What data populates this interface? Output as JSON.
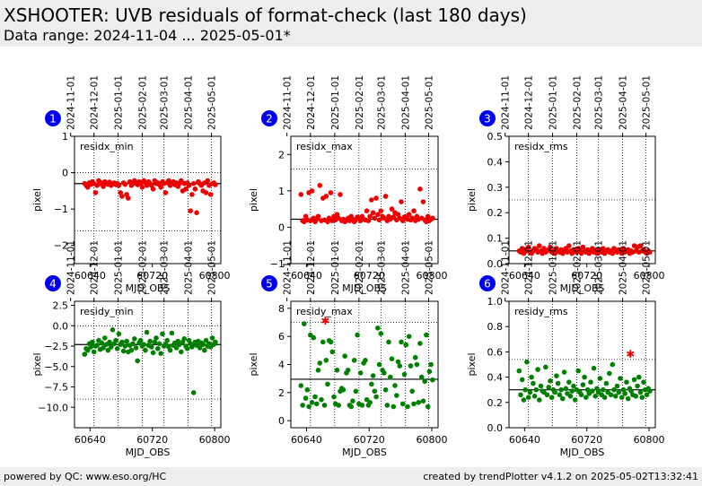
{
  "header": {
    "title": "XSHOOTER: UVB residuals of format-check (last 180 days)",
    "subtitle": "Data range: 2024-11-04 ... 2025-05-01*"
  },
  "footer": {
    "left": "powered by QC: www.eso.org/HC",
    "right": "created by trendPlotter v4.1.2 on 2025-05-02T13:32:41"
  },
  "colors": {
    "red": "#ee0000",
    "green": "#008000",
    "badge": "#0000ee",
    "header_bg": "#eeeeee"
  },
  "date_ticks": {
    "labels": [
      "2024-11-01",
      "2024-12-01",
      "2025-01-01",
      "2025-02-01",
      "2025-03-01",
      "2025-04-01",
      "2025-05-01"
    ],
    "mjd": [
      60615,
      60645,
      60676,
      60707,
      60735,
      60766,
      60796
    ]
  },
  "chart_data": [
    {
      "type": "scatter",
      "panel": "1",
      "label": "residx_min",
      "xlabel": "MJD_OBS",
      "ylabel": "pixel",
      "xlim": [
        60620,
        60808
      ],
      "xticks": [
        60640,
        60720,
        60800
      ],
      "ylim": [
        -2.5,
        1
      ],
      "yticks": [
        -2,
        -1,
        0,
        1
      ],
      "yticklabels": [
        "−2",
        "−1",
        "0",
        "1"
      ],
      "refline": -0.3,
      "hlines_dotted": [
        0,
        -1.6
      ],
      "color": "red",
      "x": [
        60633,
        60635,
        60637,
        60639,
        60641,
        60643,
        60645,
        60647,
        60649,
        60651,
        60653,
        60655,
        60657,
        60659,
        60661,
        60663,
        60665,
        60667,
        60669,
        60671,
        60673,
        60675,
        60677,
        60679,
        60681,
        60683,
        60685,
        60687,
        60689,
        60691,
        60693,
        60695,
        60697,
        60699,
        60701,
        60703,
        60705,
        60707,
        60709,
        60711,
        60713,
        60715,
        60717,
        60719,
        60721,
        60723,
        60725,
        60727,
        60729,
        60731,
        60733,
        60735,
        60737,
        60739,
        60741,
        60743,
        60745,
        60747,
        60749,
        60751,
        60753,
        60755,
        60757,
        60759,
        60761,
        60763,
        60765,
        60767,
        60769,
        60771,
        60773,
        60775,
        60777,
        60779,
        60781,
        60783,
        60785,
        60787,
        60789,
        60791,
        60793,
        60795,
        60797,
        60799,
        60801
      ],
      "y": [
        -0.3,
        -0.35,
        -0.4,
        -0.28,
        -0.32,
        -0.25,
        -0.3,
        -0.55,
        -0.35,
        -0.22,
        -0.3,
        -0.28,
        -0.38,
        -0.25,
        -0.3,
        -0.32,
        -0.26,
        -0.35,
        -0.3,
        -0.28,
        -0.33,
        -0.3,
        -0.35,
        -0.55,
        -0.65,
        -0.28,
        -0.32,
        -0.6,
        -0.7,
        -0.25,
        -0.35,
        -0.3,
        -0.22,
        -0.28,
        -0.33,
        -0.25,
        -0.3,
        -0.4,
        -0.22,
        -0.28,
        -0.35,
        -0.25,
        -0.3,
        -0.35,
        -0.45,
        -0.22,
        -0.3,
        -0.28,
        -0.33,
        -0.4,
        -0.25,
        -0.3,
        -0.55,
        -0.28,
        -0.22,
        -0.35,
        -0.3,
        -0.25,
        -0.33,
        -0.28,
        -0.38,
        -0.3,
        -0.22,
        -0.5,
        -0.3,
        -0.45,
        -0.28,
        -0.35,
        -1.05,
        -0.6,
        -0.3,
        -0.45,
        -1.1,
        -0.25,
        -0.3,
        -0.35,
        -0.5,
        -0.28,
        -0.55,
        -0.22,
        -0.35,
        -0.6,
        -0.3,
        -0.28,
        -0.33
      ]
    },
    {
      "type": "scatter",
      "panel": "2",
      "label": "residx_max",
      "xlabel": "MJD_OBS",
      "ylabel": "pixel",
      "xlim": [
        60620,
        60808
      ],
      "xticks": [
        60640,
        60720,
        60800
      ],
      "ylim": [
        -1,
        2.5
      ],
      "yticks": [
        -1,
        0,
        1,
        2
      ],
      "yticklabels": [
        "−1",
        "0",
        "1",
        "2"
      ],
      "refline": 0.22,
      "hlines_dotted": [
        1.6
      ],
      "color": "red",
      "x": [
        60633,
        60635,
        60637,
        60639,
        60641,
        60643,
        60645,
        60647,
        60649,
        60651,
        60653,
        60655,
        60657,
        60659,
        60661,
        60663,
        60665,
        60667,
        60669,
        60671,
        60673,
        60675,
        60677,
        60679,
        60681,
        60683,
        60685,
        60687,
        60689,
        60691,
        60693,
        60695,
        60697,
        60699,
        60701,
        60703,
        60705,
        60707,
        60709,
        60711,
        60713,
        60715,
        60717,
        60719,
        60721,
        60723,
        60725,
        60727,
        60729,
        60731,
        60733,
        60735,
        60737,
        60739,
        60741,
        60743,
        60745,
        60747,
        60749,
        60751,
        60753,
        60755,
        60757,
        60759,
        60761,
        60763,
        60765,
        60767,
        60769,
        60771,
        60773,
        60775,
        60777,
        60779,
        60781,
        60783,
        60785,
        60787,
        60789,
        60791,
        60793,
        60795,
        60797,
        60799,
        60801
      ],
      "y": [
        0.9,
        0.18,
        0.15,
        0.3,
        0.2,
        0.95,
        0.18,
        1.0,
        0.25,
        0.15,
        0.22,
        0.3,
        1.15,
        0.18,
        0.8,
        0.2,
        0.85,
        0.15,
        0.25,
        0.95,
        0.18,
        0.3,
        0.2,
        0.35,
        0.25,
        0.9,
        0.18,
        0.22,
        0.15,
        0.2,
        0.25,
        0.18,
        0.3,
        0.22,
        0.15,
        0.2,
        0.28,
        0.25,
        0.18,
        0.3,
        0.22,
        0.2,
        0.45,
        0.18,
        0.3,
        0.75,
        0.4,
        0.25,
        0.8,
        0.35,
        0.2,
        0.45,
        0.3,
        0.25,
        0.85,
        0.18,
        0.3,
        0.22,
        0.5,
        0.28,
        0.4,
        0.2,
        0.35,
        0.25,
        0.7,
        0.18,
        0.28,
        0.3,
        0.22,
        0.35,
        0.2,
        0.25,
        0.45,
        0.18,
        0.3,
        0.22,
        1.05,
        0.25,
        0.7,
        0.2,
        0.15,
        0.3,
        0.18,
        0.22,
        0.25
      ]
    },
    {
      "type": "scatter",
      "panel": "3",
      "label": "residx_rms",
      "xlabel": "MJD_OBS",
      "ylabel": "pixel",
      "xlim": [
        60620,
        60808
      ],
      "xticks": [
        60640,
        60720,
        60800
      ],
      "ylim": [
        0,
        0.5
      ],
      "yticks": [
        0,
        0.1,
        0.2,
        0.3,
        0.4,
        0.5
      ],
      "yticklabels": [
        "0.0",
        "0.1",
        "0.2",
        "0.3",
        "0.4",
        "0.5"
      ],
      "refline": 0.05,
      "hlines_dotted": [
        0.25
      ],
      "color": "red",
      "x": [
        60633,
        60635,
        60637,
        60639,
        60641,
        60643,
        60645,
        60647,
        60649,
        60651,
        60653,
        60655,
        60657,
        60659,
        60661,
        60663,
        60665,
        60667,
        60669,
        60671,
        60673,
        60675,
        60677,
        60679,
        60681,
        60683,
        60685,
        60687,
        60689,
        60691,
        60693,
        60695,
        60697,
        60699,
        60701,
        60703,
        60705,
        60707,
        60709,
        60711,
        60713,
        60715,
        60717,
        60719,
        60721,
        60723,
        60725,
        60727,
        60729,
        60731,
        60733,
        60735,
        60737,
        60739,
        60741,
        60743,
        60745,
        60747,
        60749,
        60751,
        60753,
        60755,
        60757,
        60759,
        60761,
        60763,
        60765,
        60767,
        60769,
        60771,
        60773,
        60775,
        60777,
        60779,
        60781,
        60783,
        60785,
        60787,
        60789,
        60791,
        60793,
        60795,
        60797,
        60799,
        60801
      ],
      "y": [
        0.05,
        0.045,
        0.06,
        0.04,
        0.055,
        0.05,
        0.065,
        0.045,
        0.04,
        0.05,
        0.06,
        0.055,
        0.045,
        0.07,
        0.05,
        0.04,
        0.06,
        0.045,
        0.05,
        0.055,
        0.065,
        0.045,
        0.05,
        0.04,
        0.06,
        0.05,
        0.045,
        0.055,
        0.04,
        0.05,
        0.06,
        0.045,
        0.07,
        0.05,
        0.04,
        0.055,
        0.05,
        0.045,
        0.06,
        0.05,
        0.04,
        0.065,
        0.05,
        0.045,
        0.055,
        0.04,
        0.05,
        0.06,
        0.045,
        0.05,
        0.04,
        0.055,
        0.05,
        0.045,
        0.06,
        0.04,
        0.05,
        0.055,
        0.045,
        0.05,
        0.04,
        0.06,
        0.05,
        0.045,
        0.055,
        0.05,
        0.04,
        0.06,
        0.045,
        0.05,
        0.055,
        0.04,
        0.05,
        0.045,
        0.07,
        0.05,
        0.065,
        0.045,
        0.07,
        0.05,
        0.055,
        0.045,
        0.04,
        0.05,
        0.045
      ]
    },
    {
      "type": "scatter",
      "panel": "4",
      "label": "residy_min",
      "xlabel": "MJD_OBS",
      "ylabel": "pixel",
      "xlim": [
        60620,
        60808
      ],
      "xticks": [
        60640,
        60720,
        60800
      ],
      "ylim": [
        -12.5,
        3
      ],
      "yticks": [
        2.5,
        0,
        -2.5,
        -5,
        -7.5,
        -10
      ],
      "yticklabels": [
        "2.5",
        "0.0",
        "−2.5",
        "−5.0",
        "−7.5",
        "−10.0"
      ],
      "refline": -2.3,
      "hlines_dotted": [
        0,
        -9
      ],
      "color": "green",
      "x": [
        60633,
        60635,
        60637,
        60639,
        60641,
        60643,
        60645,
        60647,
        60649,
        60651,
        60653,
        60655,
        60657,
        60659,
        60661,
        60663,
        60665,
        60667,
        60669,
        60671,
        60673,
        60675,
        60677,
        60679,
        60681,
        60683,
        60685,
        60687,
        60689,
        60691,
        60693,
        60695,
        60697,
        60699,
        60701,
        60703,
        60705,
        60707,
        60709,
        60711,
        60713,
        60715,
        60717,
        60719,
        60721,
        60723,
        60725,
        60727,
        60729,
        60731,
        60733,
        60735,
        60737,
        60739,
        60741,
        60743,
        60745,
        60747,
        60749,
        60751,
        60753,
        60755,
        60757,
        60759,
        60761,
        60763,
        60765,
        60767,
        60769,
        60771,
        60773,
        60775,
        60777,
        60779,
        60781,
        60783,
        60785,
        60787,
        60789,
        60791,
        60793,
        60795,
        60797,
        60799,
        60801
      ],
      "y": [
        -3.5,
        -2.8,
        -3.0,
        -2.2,
        -2.6,
        -2.0,
        -3.2,
        -2.5,
        -2.4,
        -1.8,
        -2.9,
        -2.1,
        -2.7,
        -1.5,
        -2.3,
        -3.0,
        -2.0,
        -2.6,
        -0.5,
        -2.2,
        -1.8,
        -2.8,
        -1.0,
        -2.3,
        -2.0,
        -3.1,
        -2.5,
        -1.9,
        -3.2,
        -2.4,
        -3.0,
        -2.2,
        -1.6,
        -2.7,
        -4.3,
        -2.1,
        -1.8,
        -2.5,
        -2.3,
        -3.0,
        -0.8,
        -2.4,
        -1.9,
        -2.6,
        -3.3,
        -2.0,
        -1.5,
        -2.8,
        -2.2,
        -3.4,
        -1.0,
        -2.5,
        -2.3,
        -1.8,
        -2.6,
        -3.0,
        -0.9,
        -2.4,
        -2.1,
        -2.7,
        -1.9,
        -2.3,
        -3.2,
        -2.0,
        -1.6,
        -2.5,
        -2.8,
        -1.8,
        -2.2,
        -2.6,
        -8.2,
        -2.0,
        -2.4,
        -1.9,
        -2.7,
        -2.1,
        -2.3,
        -3.0,
        -1.8,
        -2.5,
        -2.2,
        -2.6,
        -1.5,
        -2.3,
        -2.0
      ]
    },
    {
      "type": "scatter",
      "panel": "5",
      "label": "residy_max",
      "xlabel": "MJD_OBS",
      "ylabel": "pixel",
      "xlim": [
        60620,
        60808
      ],
      "xticks": [
        60640,
        60720,
        60800
      ],
      "ylim": [
        -0.5,
        8.5
      ],
      "yticks": [
        0,
        2,
        4,
        6,
        8
      ],
      "yticklabels": [
        "0",
        "2",
        "4",
        "6",
        "8"
      ],
      "refline": 2.95,
      "hlines_dotted": [
        7.0
      ],
      "color": "green",
      "outlier": {
        "x": 60664,
        "y": 7.1
      },
      "x": [
        60633,
        60635,
        60637,
        60639,
        60641,
        60643,
        60645,
        60647,
        60649,
        60651,
        60653,
        60655,
        60657,
        60659,
        60661,
        60663,
        60665,
        60667,
        60669,
        60671,
        60673,
        60675,
        60677,
        60679,
        60681,
        60683,
        60685,
        60687,
        60689,
        60691,
        60693,
        60695,
        60697,
        60699,
        60701,
        60703,
        60705,
        60707,
        60709,
        60711,
        60713,
        60715,
        60717,
        60719,
        60721,
        60723,
        60725,
        60727,
        60729,
        60731,
        60733,
        60735,
        60737,
        60739,
        60741,
        60743,
        60745,
        60747,
        60749,
        60751,
        60753,
        60755,
        60757,
        60759,
        60761,
        60763,
        60765,
        60767,
        60769,
        60771,
        60773,
        60775,
        60777,
        60779,
        60781,
        60783,
        60785,
        60787,
        60789,
        60791,
        60793,
        60795,
        60797,
        60799,
        60801
      ],
      "y": [
        2.5,
        1.1,
        6.9,
        1.6,
        2.2,
        1.0,
        6.1,
        1.3,
        5.9,
        1.7,
        1.2,
        3.6,
        4.1,
        1.5,
        5.6,
        1.1,
        4.3,
        2.6,
        5.7,
        5.6,
        4.9,
        1.7,
        1.2,
        3.6,
        1.1,
        2.1,
        2.3,
        2.2,
        4.6,
        3.4,
        3.6,
        1.1,
        1.0,
        1.4,
        4.3,
        2.1,
        6.1,
        1.2,
        3.4,
        1.1,
        4.1,
        4.3,
        1.5,
        1.1,
        1.3,
        2.6,
        3.2,
        2.1,
        1.7,
        6.6,
        4.0,
        6.2,
        3.6,
        3.4,
        2.2,
        1.1,
        5.6,
        3.1,
        4.4,
        1.0,
        2.5,
        1.8,
        4.2,
        3.9,
        5.6,
        1.2,
        3.3,
        5.4,
        1.0,
        6.0,
        3.9,
        2.1,
        1.2,
        4.5,
        4.0,
        1.3,
        5.5,
        3.1,
        1.4,
        2.8,
        6.1,
        1.0,
        3.5,
        4.0,
        2.9
      ]
    },
    {
      "type": "scatter",
      "panel": "6",
      "label": "residy_rms",
      "xlabel": "MJD_OBS",
      "ylabel": "pixel",
      "xlim": [
        60620,
        60808
      ],
      "xticks": [
        60640,
        60720,
        60800
      ],
      "ylim": [
        0,
        1
      ],
      "yticks": [
        0,
        0.2,
        0.4,
        0.6,
        0.8,
        1.0
      ],
      "yticklabels": [
        "0.0",
        "0.2",
        "0.4",
        "0.6",
        "0.8",
        "1.0"
      ],
      "refline": 0.3,
      "hlines_dotted": [
        0.54
      ],
      "color": "green",
      "outlier": {
        "x": 60776,
        "y": 0.58
      },
      "x": [
        60633,
        60635,
        60637,
        60639,
        60641,
        60643,
        60645,
        60647,
        60649,
        60651,
        60653,
        60655,
        60657,
        60659,
        60661,
        60663,
        60665,
        60667,
        60669,
        60671,
        60673,
        60675,
        60677,
        60679,
        60681,
        60683,
        60685,
        60687,
        60689,
        60691,
        60693,
        60695,
        60697,
        60699,
        60701,
        60703,
        60705,
        60707,
        60709,
        60711,
        60713,
        60715,
        60717,
        60719,
        60721,
        60723,
        60725,
        60727,
        60729,
        60731,
        60733,
        60735,
        60737,
        60739,
        60741,
        60743,
        60745,
        60747,
        60749,
        60751,
        60753,
        60755,
        60757,
        60759,
        60761,
        60763,
        60765,
        60767,
        60769,
        60771,
        60773,
        60775,
        60777,
        60779,
        60781,
        60783,
        60785,
        60787,
        60789,
        60791,
        60793,
        60795,
        60797,
        60799,
        60801
      ],
      "y": [
        0.45,
        0.26,
        0.38,
        0.22,
        0.3,
        0.52,
        0.24,
        0.28,
        0.4,
        0.35,
        0.25,
        0.3,
        0.46,
        0.22,
        0.33,
        0.29,
        0.28,
        0.48,
        0.26,
        0.32,
        0.37,
        0.24,
        0.3,
        0.28,
        0.41,
        0.35,
        0.26,
        0.3,
        0.23,
        0.44,
        0.31,
        0.27,
        0.36,
        0.25,
        0.29,
        0.33,
        0.22,
        0.3,
        0.45,
        0.28,
        0.26,
        0.34,
        0.4,
        0.24,
        0.3,
        0.27,
        0.36,
        0.29,
        0.47,
        0.25,
        0.31,
        0.28,
        0.39,
        0.26,
        0.3,
        0.24,
        0.35,
        0.28,
        0.43,
        0.26,
        0.5,
        0.3,
        0.25,
        0.33,
        0.28,
        0.39,
        0.24,
        0.3,
        0.27,
        0.36,
        0.23,
        0.31,
        0.29,
        0.26,
        0.38,
        0.25,
        0.33,
        0.4,
        0.28,
        0.24,
        0.36,
        0.3,
        0.26,
        0.31,
        0.29
      ]
    }
  ]
}
